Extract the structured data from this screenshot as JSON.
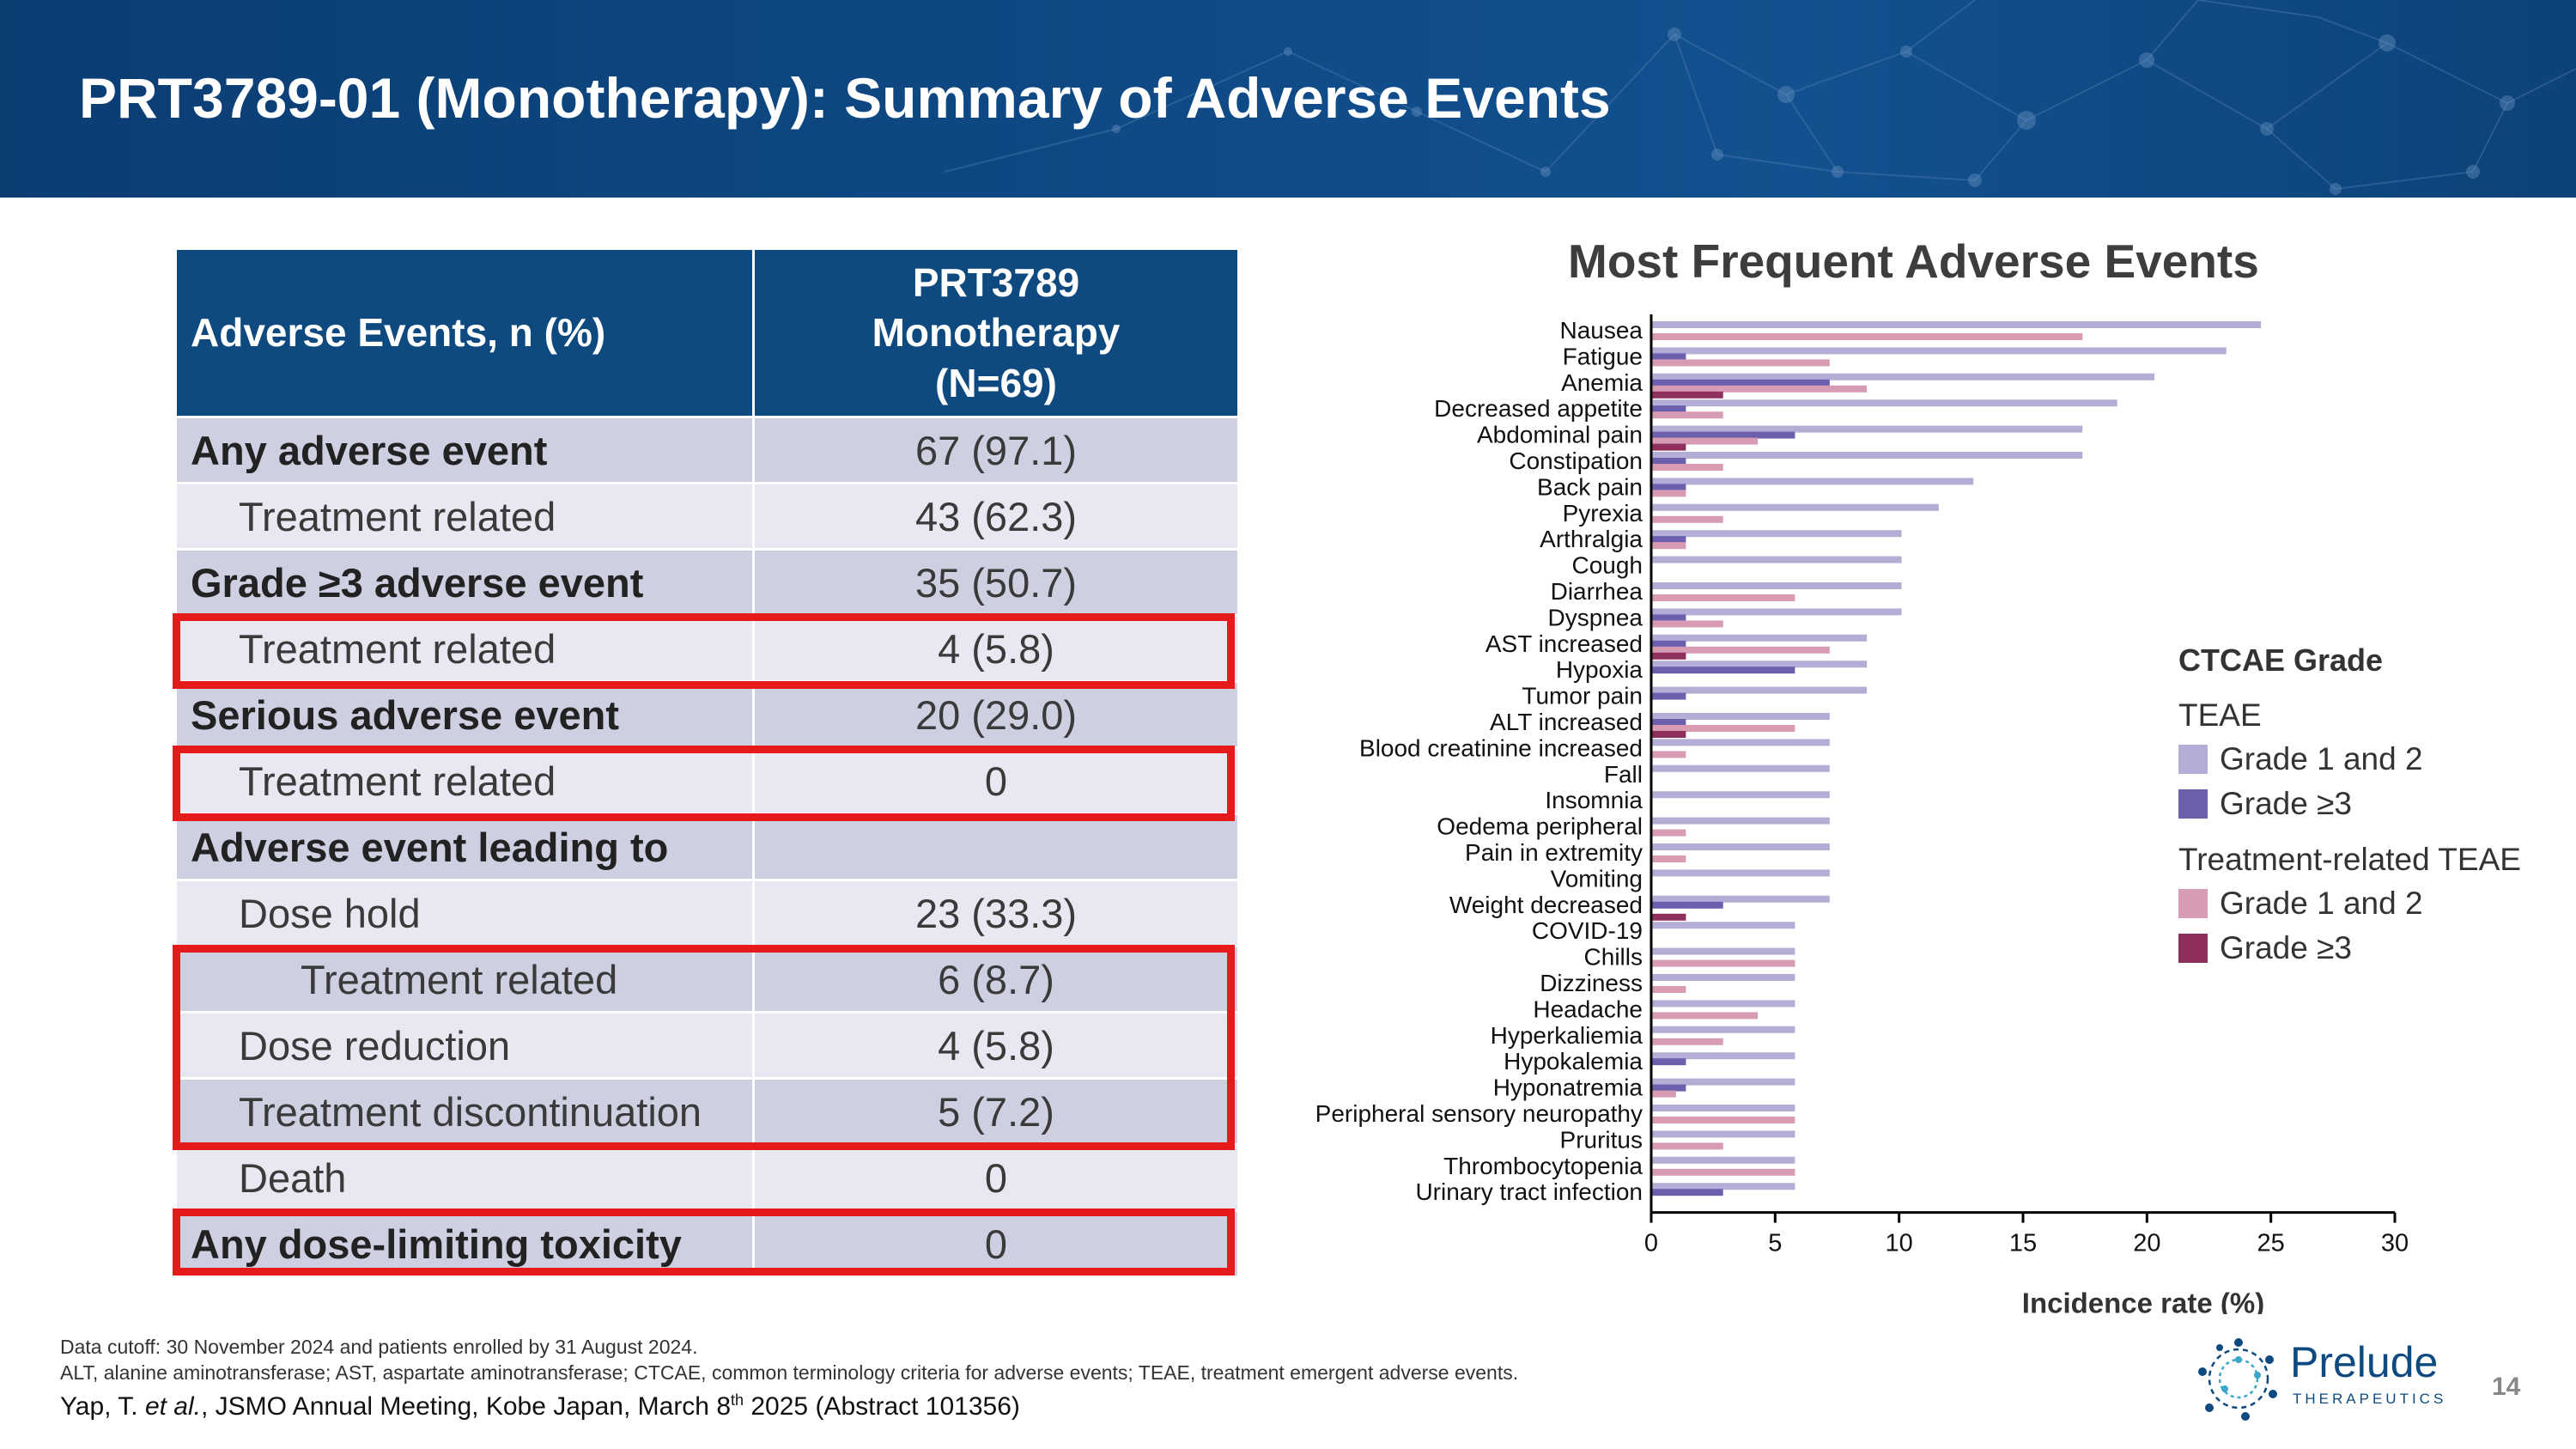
{
  "header": {
    "title": "PRT3789-01 (Monotherapy): Summary of Adverse Events"
  },
  "table": {
    "col1_header": "Adverse Events, n (%)",
    "col2_header_lines": [
      "PRT3789",
      "Monotherapy",
      "(N=69)"
    ],
    "rows": [
      {
        "label": "Any adverse event",
        "value": "67 (97.1)"
      },
      {
        "label": "Treatment related",
        "value": "43 (62.3)"
      },
      {
        "label": "Grade ≥3 adverse event",
        "value": "35 (50.7)"
      },
      {
        "label": "Treatment related",
        "value": "4 (5.8)"
      },
      {
        "label": "Serious adverse event",
        "value": "20 (29.0)"
      },
      {
        "label": "Treatment related",
        "value": "0"
      },
      {
        "label": "Adverse event leading to",
        "value": ""
      },
      {
        "label": "Dose hold",
        "value": "23 (33.3)"
      },
      {
        "label": "Treatment related",
        "value": "6 (8.7)"
      },
      {
        "label": "Dose reduction",
        "value": "4 (5.8)"
      },
      {
        "label": "Treatment discontinuation",
        "value": "5 (7.2)"
      },
      {
        "label": "Death",
        "value": "0"
      },
      {
        "label": "Any dose-limiting toxicity",
        "value": "0"
      }
    ]
  },
  "chart_data": {
    "type": "bar",
    "orientation": "horizontal",
    "title": "Most Frequent Adverse Events",
    "xlabel": "Incidence rate (%)",
    "xlim": [
      0,
      30
    ],
    "xticks": [
      0,
      5,
      10,
      15,
      20,
      25,
      30
    ],
    "grid": false,
    "legend_position": "right",
    "categories": [
      "Nausea",
      "Fatigue",
      "Anemia",
      "Decreased appetite",
      "Abdominal pain",
      "Constipation",
      "Back pain",
      "Pyrexia",
      "Arthralgia",
      "Cough",
      "Diarrhea",
      "Dyspnea",
      "AST increased",
      "Hypoxia",
      "Tumor pain",
      "ALT increased",
      "Blood creatinine increased",
      "Fall",
      "Insomnia",
      "Oedema peripheral",
      "Pain in extremity",
      "Vomiting",
      "Weight decreased",
      "COVID-19",
      "Chills",
      "Dizziness",
      "Headache",
      "Hyperkaliemia",
      "Hypokalemia",
      "Hyponatremia",
      "Peripheral sensory neuropathy",
      "Pruritus",
      "Thrombocytopenia",
      "Urinary tract infection"
    ],
    "series": [
      {
        "group": "TEAE",
        "name": "Grade 1 and 2",
        "color": "#b3aed6",
        "values": [
          24.6,
          23.2,
          20.3,
          18.8,
          17.4,
          17.4,
          13.0,
          11.6,
          10.1,
          10.1,
          10.1,
          10.1,
          8.7,
          8.7,
          8.7,
          7.2,
          7.2,
          7.2,
          7.2,
          7.2,
          7.2,
          7.2,
          7.2,
          5.8,
          5.8,
          5.8,
          5.8,
          5.8,
          5.8,
          5.8,
          5.8,
          5.8,
          5.8,
          5.8
        ]
      },
      {
        "group": "TEAE",
        "name": "Grade ≥3",
        "color": "#6b5fae",
        "values": [
          0,
          1.4,
          7.2,
          1.4,
          5.8,
          1.4,
          1.4,
          0,
          1.4,
          0,
          0,
          1.4,
          1.4,
          5.8,
          1.4,
          1.4,
          0,
          0,
          0,
          0,
          0,
          0,
          2.9,
          0,
          0,
          0,
          0,
          0,
          1.4,
          1.4,
          0,
          0,
          0,
          2.9
        ]
      },
      {
        "group": "Treatment-related TEAE",
        "name": "Grade 1 and 2",
        "color": "#d79cb3",
        "values": [
          17.4,
          7.2,
          8.7,
          2.9,
          4.3,
          2.9,
          1.4,
          2.9,
          1.4,
          0,
          5.8,
          2.9,
          7.2,
          0,
          0,
          5.8,
          1.4,
          0,
          0,
          1.4,
          1.4,
          0,
          0,
          0,
          5.8,
          1.4,
          4.3,
          2.9,
          0,
          1.0,
          5.8,
          2.9,
          5.8,
          0
        ]
      },
      {
        "group": "Treatment-related TEAE",
        "name": "Grade ≥3",
        "color": "#8e2f5e",
        "values": [
          0,
          0,
          2.9,
          0,
          1.4,
          0,
          0,
          0,
          0,
          0,
          0,
          0,
          1.4,
          0,
          0,
          1.4,
          0,
          0,
          0,
          0,
          0,
          0,
          1.4,
          0,
          0,
          0,
          0,
          0,
          0,
          0,
          0,
          0,
          0,
          0
        ]
      }
    ]
  },
  "legend": {
    "title": "CTCAE Grade",
    "group1": "TEAE",
    "group1_items": [
      {
        "label": "Grade 1 and 2",
        "color": "#b3aed6"
      },
      {
        "label": "Grade ≥3",
        "color": "#6b5fae"
      }
    ],
    "group2": "Treatment-related TEAE",
    "group2_items": [
      {
        "label": "Grade 1 and 2",
        "color": "#d79cb3"
      },
      {
        "label": "Grade ≥3",
        "color": "#8e2f5e"
      }
    ]
  },
  "footer": {
    "note1": "Data cutoff: 30 November 2024 and patients enrolled by 31 August 2024.",
    "note2": "ALT, alanine aminotransferase; AST, aspartate aminotransferase; CTCAE, common terminology criteria for adverse events; TEAE, treatment emergent adverse events.",
    "citation_author": "Yap, T. ",
    "citation_etal": "et al.",
    "citation_mid": ", JSMO Annual Meeting, Kobe Japan, March 8",
    "citation_sup": "th",
    "citation_end": " 2025 (Abstract 101356)"
  },
  "logo": {
    "name": "Prelude",
    "subtitle": "THERAPEUTICS"
  },
  "page_number": "14",
  "colors": {
    "banner": "#0e4a80",
    "highlight_box": "#e51b1b",
    "row_dark": "#cfcfe2",
    "row_light": "#e8e8f2"
  }
}
